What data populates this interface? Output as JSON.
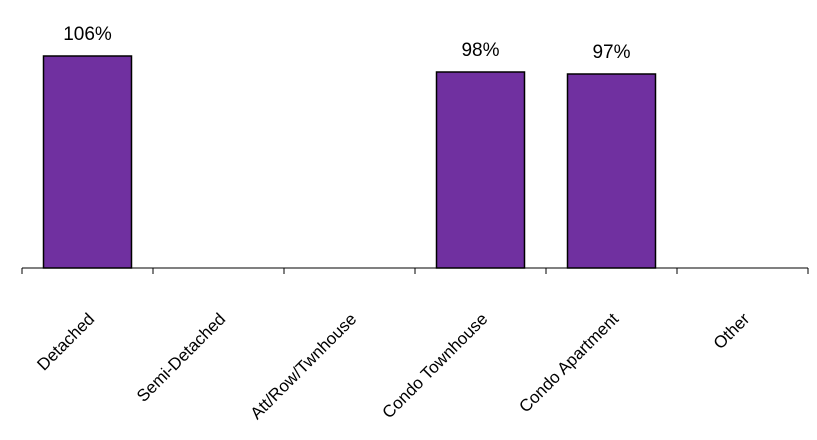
{
  "chart_data": {
    "type": "bar",
    "categories": [
      "Detached",
      "Semi-Detached",
      "Att/Row/Twnhouse",
      "Condo Townhouse",
      "Condo Apartment",
      "Other"
    ],
    "values": [
      106,
      null,
      null,
      98,
      97,
      null
    ],
    "data_labels": [
      "106%",
      "",
      "",
      "98%",
      "97%",
      ""
    ],
    "title": "",
    "xlabel": "",
    "ylabel": "",
    "ylim": [
      0,
      110
    ],
    "grid": false,
    "legend": "none",
    "bar_color": "#7030A0",
    "outline_color": "#000000"
  }
}
